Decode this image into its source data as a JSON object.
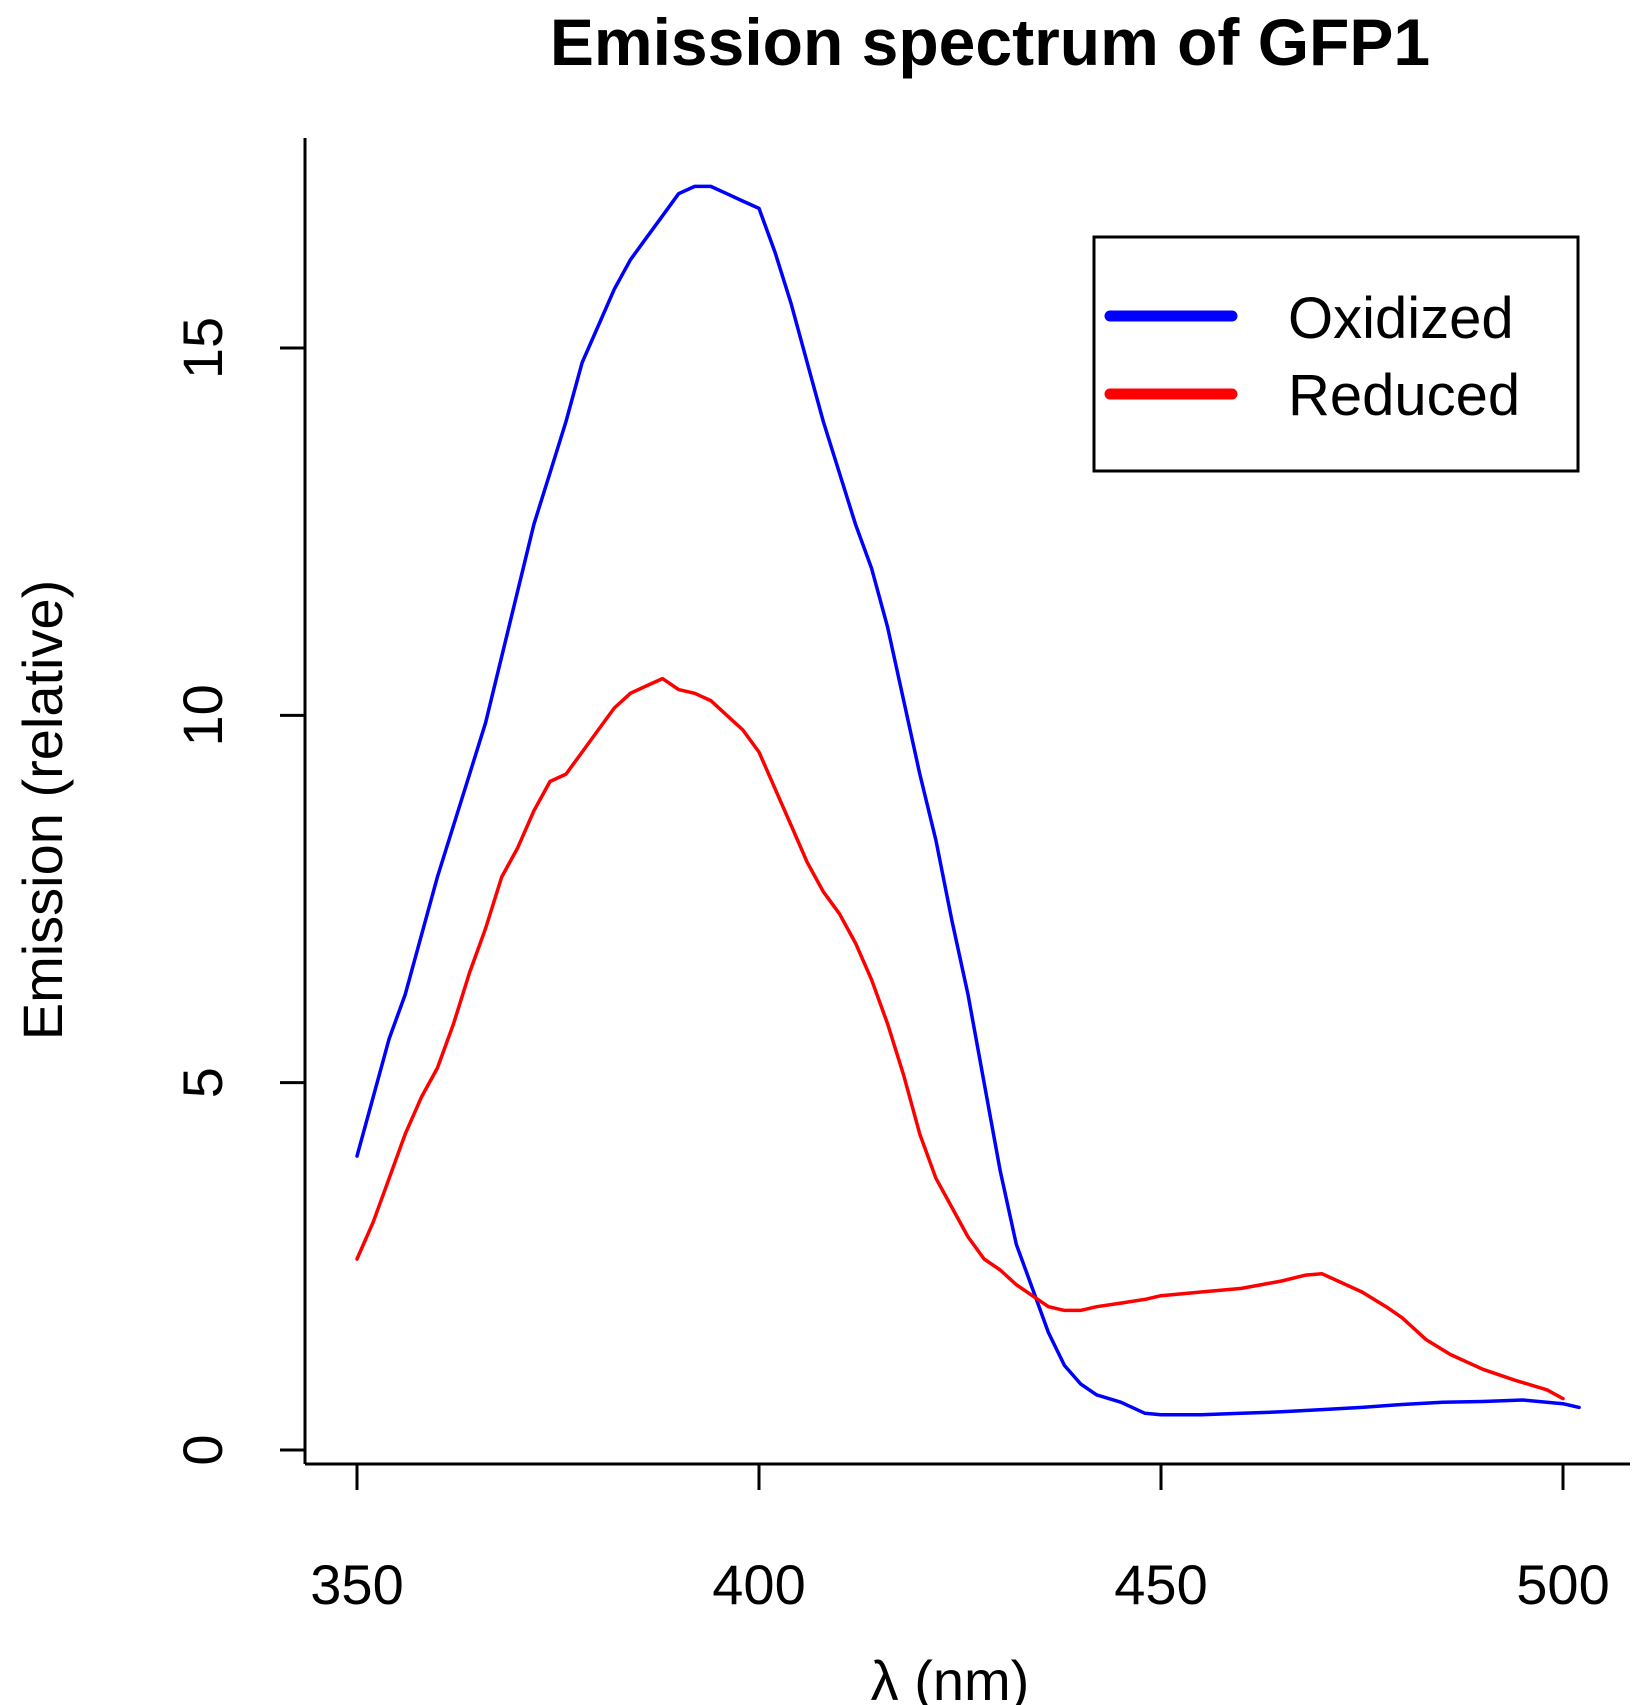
{
  "chart_data": {
    "type": "line",
    "title": "Emission spectrum of GFP1",
    "xlabel": "λ (nm)",
    "ylabel": "Emission (relative)",
    "xlim": [
      350,
      502
    ],
    "ylim": [
      0,
      17.5
    ],
    "x_ticks": [
      350,
      400,
      450,
      500
    ],
    "x_tick_labels": [
      "350",
      "400",
      "450",
      "500"
    ],
    "y_ticks": [
      0,
      5,
      10,
      15
    ],
    "y_tick_labels": [
      "0",
      "5",
      "10",
      "15"
    ],
    "grid": false,
    "legend_position": "top-right",
    "series": [
      {
        "name": "Oxidized",
        "color": "#0000ff",
        "points": [
          [
            350,
            4.0
          ],
          [
            352,
            4.8
          ],
          [
            354,
            5.6
          ],
          [
            356,
            6.2
          ],
          [
            358,
            7.0
          ],
          [
            360,
            7.8
          ],
          [
            362,
            8.5
          ],
          [
            364,
            9.2
          ],
          [
            366,
            9.9
          ],
          [
            368,
            10.8
          ],
          [
            370,
            11.7
          ],
          [
            372,
            12.6
          ],
          [
            374,
            13.3
          ],
          [
            376,
            14.0
          ],
          [
            378,
            14.8
          ],
          [
            380,
            15.3
          ],
          [
            382,
            15.8
          ],
          [
            384,
            16.2
          ],
          [
            386,
            16.5
          ],
          [
            388,
            16.8
          ],
          [
            390,
            17.1
          ],
          [
            392,
            17.2
          ],
          [
            394,
            17.2
          ],
          [
            396,
            17.1
          ],
          [
            398,
            17.0
          ],
          [
            400,
            16.9
          ],
          [
            402,
            16.3
          ],
          [
            404,
            15.6
          ],
          [
            406,
            14.8
          ],
          [
            408,
            14.0
          ],
          [
            410,
            13.3
          ],
          [
            412,
            12.6
          ],
          [
            414,
            12.0
          ],
          [
            416,
            11.2
          ],
          [
            418,
            10.2
          ],
          [
            420,
            9.2
          ],
          [
            422,
            8.3
          ],
          [
            424,
            7.2
          ],
          [
            426,
            6.2
          ],
          [
            428,
            5.0
          ],
          [
            430,
            3.8
          ],
          [
            432,
            2.8
          ],
          [
            434,
            2.2
          ],
          [
            436,
            1.6
          ],
          [
            438,
            1.15
          ],
          [
            440,
            0.9
          ],
          [
            442,
            0.75
          ],
          [
            445,
            0.65
          ],
          [
            448,
            0.5
          ],
          [
            450,
            0.48
          ],
          [
            455,
            0.48
          ],
          [
            460,
            0.5
          ],
          [
            465,
            0.52
          ],
          [
            470,
            0.55
          ],
          [
            475,
            0.58
          ],
          [
            480,
            0.62
          ],
          [
            485,
            0.65
          ],
          [
            490,
            0.66
          ],
          [
            495,
            0.68
          ],
          [
            500,
            0.63
          ],
          [
            502,
            0.58
          ]
        ]
      },
      {
        "name": "Reduced",
        "color": "#ff0000",
        "points": [
          [
            350,
            2.6
          ],
          [
            352,
            3.1
          ],
          [
            354,
            3.7
          ],
          [
            356,
            4.3
          ],
          [
            358,
            4.8
          ],
          [
            360,
            5.2
          ],
          [
            362,
            5.8
          ],
          [
            364,
            6.5
          ],
          [
            366,
            7.1
          ],
          [
            368,
            7.8
          ],
          [
            370,
            8.2
          ],
          [
            372,
            8.7
          ],
          [
            374,
            9.1
          ],
          [
            376,
            9.2
          ],
          [
            378,
            9.5
          ],
          [
            380,
            9.8
          ],
          [
            382,
            10.1
          ],
          [
            384,
            10.3
          ],
          [
            386,
            10.4
          ],
          [
            388,
            10.5
          ],
          [
            390,
            10.35
          ],
          [
            392,
            10.3
          ],
          [
            394,
            10.2
          ],
          [
            396,
            10.0
          ],
          [
            398,
            9.8
          ],
          [
            400,
            9.5
          ],
          [
            402,
            9.0
          ],
          [
            404,
            8.5
          ],
          [
            406,
            8.0
          ],
          [
            408,
            7.6
          ],
          [
            410,
            7.3
          ],
          [
            412,
            6.9
          ],
          [
            414,
            6.4
          ],
          [
            416,
            5.8
          ],
          [
            418,
            5.1
          ],
          [
            420,
            4.3
          ],
          [
            422,
            3.7
          ],
          [
            424,
            3.3
          ],
          [
            426,
            2.9
          ],
          [
            428,
            2.6
          ],
          [
            430,
            2.45
          ],
          [
            432,
            2.25
          ],
          [
            434,
            2.1
          ],
          [
            436,
            1.95
          ],
          [
            438,
            1.9
          ],
          [
            440,
            1.9
          ],
          [
            442,
            1.95
          ],
          [
            445,
            2.0
          ],
          [
            448,
            2.05
          ],
          [
            450,
            2.1
          ],
          [
            455,
            2.15
          ],
          [
            460,
            2.2
          ],
          [
            465,
            2.3
          ],
          [
            468,
            2.38
          ],
          [
            470,
            2.4
          ],
          [
            472,
            2.3
          ],
          [
            475,
            2.15
          ],
          [
            478,
            1.95
          ],
          [
            480,
            1.8
          ],
          [
            483,
            1.5
          ],
          [
            486,
            1.3
          ],
          [
            490,
            1.1
          ],
          [
            494,
            0.95
          ],
          [
            498,
            0.82
          ],
          [
            500,
            0.7
          ]
        ]
      }
    ]
  }
}
